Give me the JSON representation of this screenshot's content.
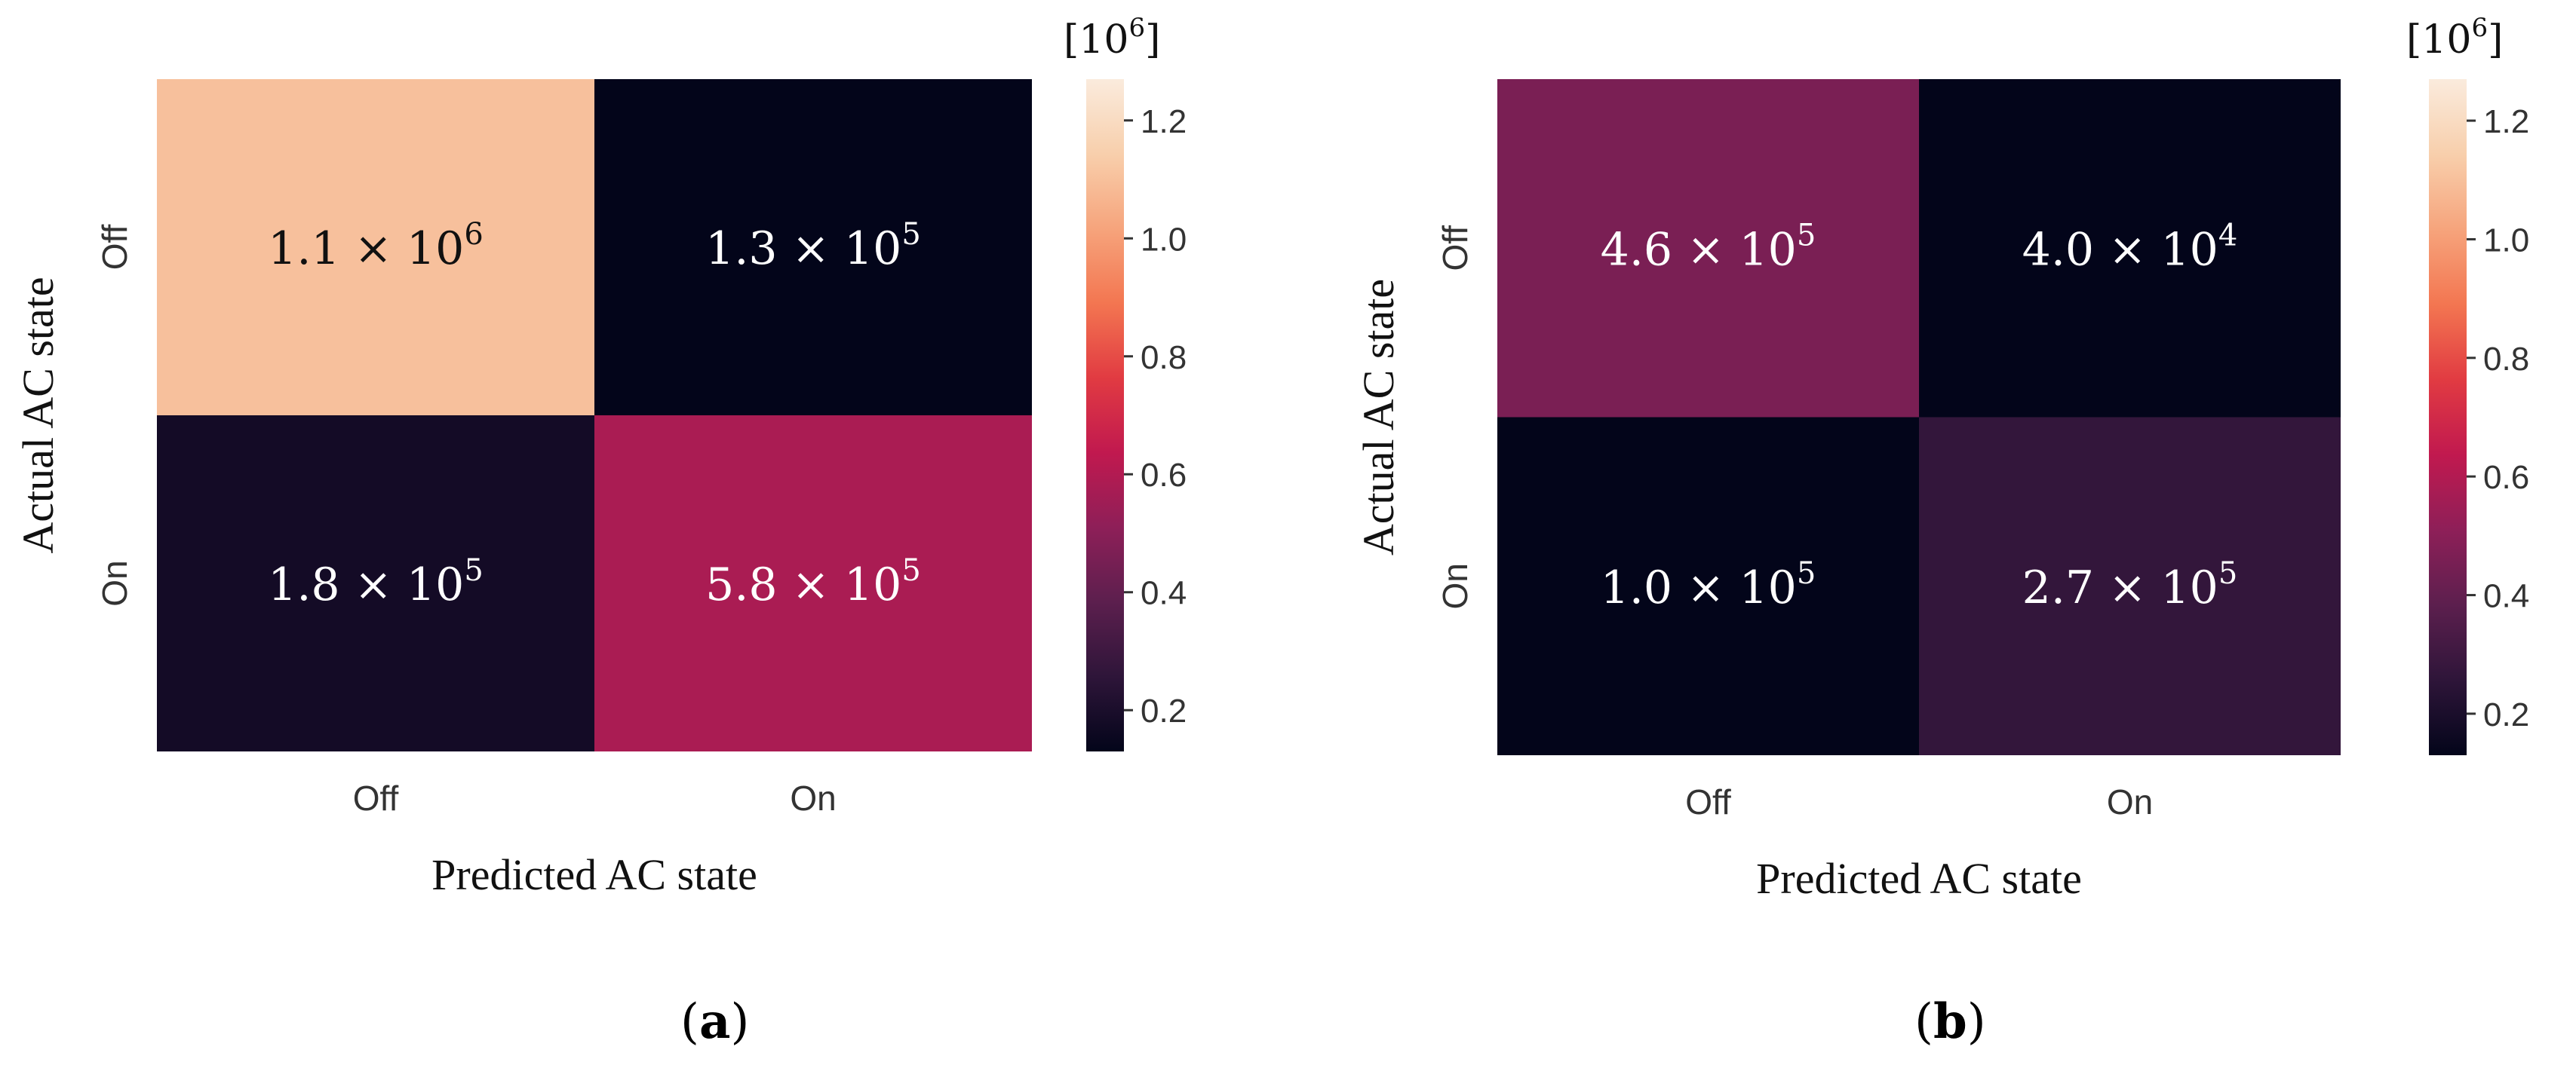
{
  "chart_data": [
    {
      "type": "heatmap",
      "panel_label": "a",
      "xlabel": "Predicted AC state",
      "ylabel": "Actual AC state",
      "x_categories": [
        "Off",
        "On"
      ],
      "y_categories": [
        "Off",
        "On"
      ],
      "values": [
        [
          1100000,
          130000
        ],
        [
          180000,
          580000
        ]
      ],
      "annotations": [
        [
          "1.1",
          "1.3"
        ],
        [
          "1.8",
          "5.8"
        ]
      ],
      "exponents": [
        [
          "6",
          "5"
        ],
        [
          "5",
          "5"
        ]
      ],
      "colorbar": {
        "unit_base": "10",
        "unit_exp": "6",
        "scale": 1000000,
        "range": [
          0.13,
          1.27
        ],
        "ticks": [
          "0.2",
          "0.4",
          "0.6",
          "0.8",
          "1.0",
          "1.2"
        ]
      },
      "colormap": [
        "#03051a",
        "#2e1539",
        "#5c1f4e",
        "#8e1f58",
        "#c1194f",
        "#e13b42",
        "#f37651",
        "#f6a47c",
        "#f8cfac",
        "#faebdd"
      ]
    },
    {
      "type": "heatmap",
      "panel_label": "b",
      "xlabel": "Predicted AC state",
      "ylabel": "Actual AC state",
      "x_categories": [
        "Off",
        "On"
      ],
      "y_categories": [
        "Off",
        "On"
      ],
      "values": [
        [
          460000,
          40000
        ],
        [
          100000,
          270000
        ]
      ],
      "annotations": [
        [
          "4.6",
          "4.0"
        ],
        [
          "1.0",
          "2.7"
        ]
      ],
      "exponents": [
        [
          "5",
          "4"
        ],
        [
          "5",
          "5"
        ]
      ],
      "colorbar": {
        "unit_base": "10",
        "unit_exp": "6",
        "scale": 1000000,
        "range": [
          0.13,
          1.27
        ],
        "ticks": [
          "0.2",
          "0.4",
          "0.6",
          "0.8",
          "1.0",
          "1.2"
        ]
      },
      "colormap": [
        "#03051a",
        "#2e1539",
        "#5c1f4e",
        "#8e1f58",
        "#c1194f",
        "#e13b42",
        "#f37651",
        "#f6a47c",
        "#f8cfac",
        "#faebdd"
      ]
    }
  ]
}
